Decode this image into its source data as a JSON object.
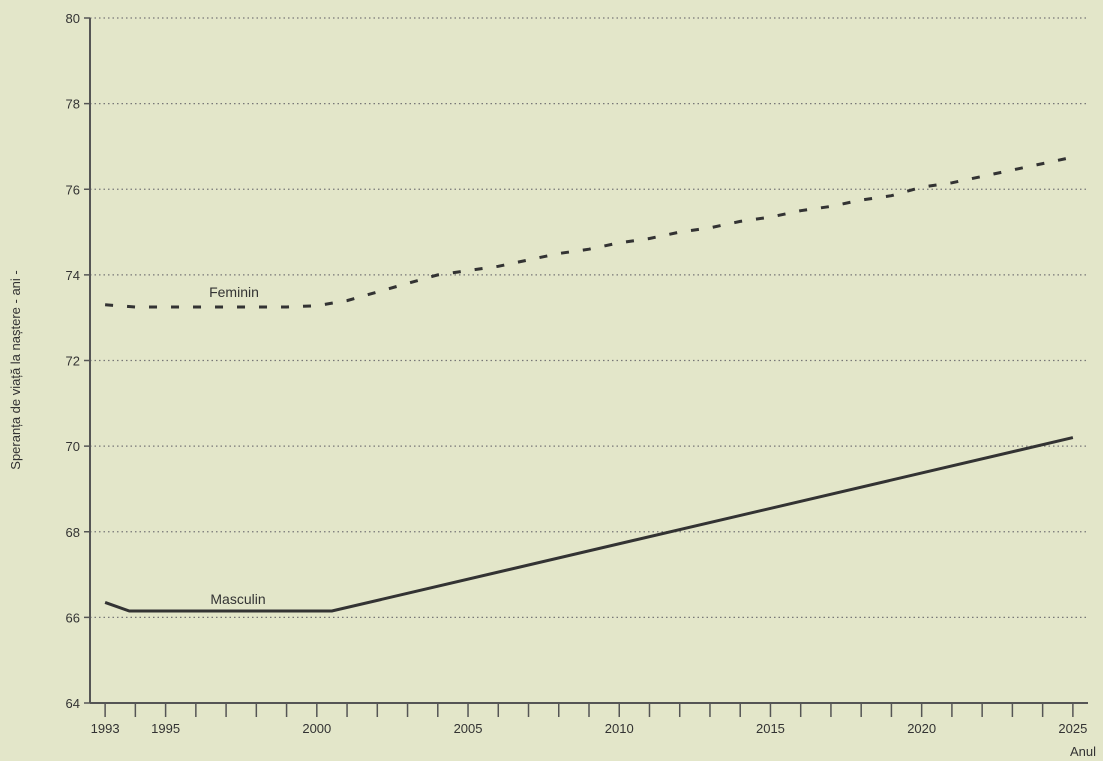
{
  "chart_data": {
    "type": "line",
    "title": "",
    "xlabel": "Anul",
    "ylabel": "Speranța de viață la naștere - ani -",
    "xlim": [
      1992.5,
      2025.5
    ],
    "ylim": [
      64,
      80
    ],
    "x_ticks": [
      1993,
      1995,
      2000,
      2005,
      2010,
      2015,
      2020,
      2025
    ],
    "y_ticks": [
      64,
      66,
      68,
      70,
      72,
      74,
      76,
      78,
      80
    ],
    "grid": "horizontal dotted",
    "legend": "none (inline labels)",
    "series": [
      {
        "name": "Feminin",
        "style": "dashed",
        "points": [
          [
            1993,
            73.3
          ],
          [
            1994,
            73.25
          ],
          [
            1995,
            73.25
          ],
          [
            1996,
            73.25
          ],
          [
            1997,
            73.25
          ],
          [
            1998,
            73.25
          ],
          [
            1999,
            73.25
          ],
          [
            2000,
            73.28
          ],
          [
            2001,
            73.4
          ],
          [
            2002,
            73.6
          ],
          [
            2003,
            73.8
          ],
          [
            2004,
            74.0
          ],
          [
            2005,
            74.1
          ],
          [
            2006,
            74.2
          ],
          [
            2007,
            74.35
          ],
          [
            2008,
            74.5
          ],
          [
            2009,
            74.6
          ],
          [
            2010,
            74.75
          ],
          [
            2011,
            74.85
          ],
          [
            2012,
            75.0
          ],
          [
            2013,
            75.1
          ],
          [
            2014,
            75.25
          ],
          [
            2015,
            75.35
          ],
          [
            2016,
            75.5
          ],
          [
            2017,
            75.6
          ],
          [
            2018,
            75.75
          ],
          [
            2019,
            75.85
          ],
          [
            2020,
            76.05
          ],
          [
            2021,
            76.15
          ],
          [
            2022,
            76.3
          ],
          [
            2023,
            76.45
          ],
          [
            2024,
            76.6
          ],
          [
            2025,
            76.75
          ]
        ]
      },
      {
        "name": "Masculin",
        "style": "solid",
        "points": [
          [
            1993,
            66.35
          ],
          [
            1993.8,
            66.15
          ],
          [
            2000.5,
            66.15
          ],
          [
            2025,
            70.2
          ]
        ]
      }
    ],
    "colors": {
      "line": "#333333",
      "axis": "#555555",
      "grid": "#777777"
    }
  }
}
